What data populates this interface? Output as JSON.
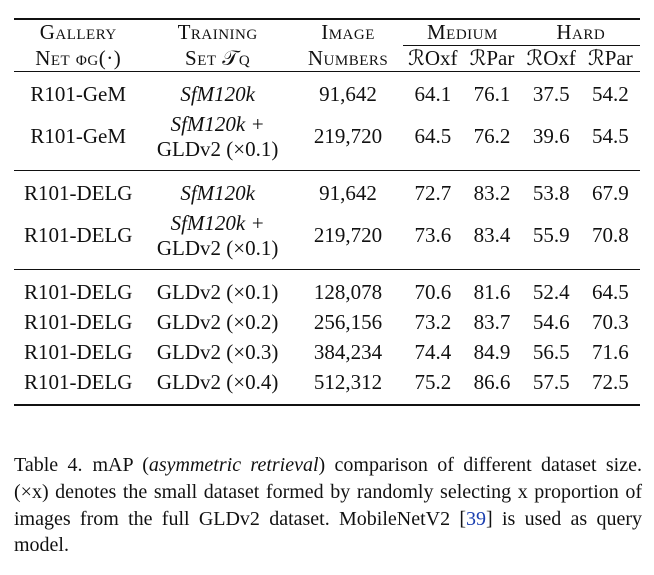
{
  "table": {
    "headers": {
      "gallery_line1": "Gallery",
      "gallery_line2": "Net ϕg(·)",
      "training_line1": "Training",
      "training_line2": "Set 𝒯q",
      "image_line1": "Image",
      "image_line2": "Numbers",
      "medium": "Medium",
      "hard": "Hard",
      "roxf": "ℛOxf",
      "rpar": "ℛPar"
    },
    "sections": [
      [
        {
          "net": "R101-GeM",
          "set": "SfM120k",
          "set2": "",
          "images": "91,642",
          "vals": [
            "64.1",
            "76.1",
            "37.5",
            "54.2"
          ],
          "bold": false
        },
        {
          "net": "R101-GeM",
          "set": "SfM120k +",
          "set2": "GLDv2 (×0.1)",
          "images": "219,720",
          "vals": [
            "64.5",
            "76.2",
            "39.6",
            "54.5"
          ],
          "bold": true
        }
      ],
      [
        {
          "net": "R101-DELG",
          "set": "SfM120k",
          "set2": "",
          "images": "91,642",
          "vals": [
            "72.7",
            "83.2",
            "53.8",
            "67.9"
          ],
          "bold": false
        },
        {
          "net": "R101-DELG",
          "set": "SfM120k +",
          "set2": "GLDv2 (×0.1)",
          "images": "219,720",
          "vals": [
            "73.6",
            "83.4",
            "55.9",
            "70.8"
          ],
          "bold": true
        }
      ],
      [
        {
          "net": "R101-DELG",
          "set": "GLDv2 (×0.1)",
          "images": "128,078",
          "vals": [
            "70.6",
            "81.6",
            "52.4",
            "64.5"
          ]
        },
        {
          "net": "R101-DELG",
          "set": "GLDv2 (×0.2)",
          "images": "256,156",
          "vals": [
            "73.2",
            "83.7",
            "54.6",
            "70.3"
          ]
        },
        {
          "net": "R101-DELG",
          "set": "GLDv2 (×0.3)",
          "images": "384,234",
          "vals": [
            "74.4",
            "84.9",
            "56.5",
            "71.6"
          ]
        },
        {
          "net": "R101-DELG",
          "set": "GLDv2 (×0.4)",
          "images": "512,312",
          "vals": [
            "75.2",
            "86.6",
            "57.5",
            "72.5"
          ],
          "bold": true
        }
      ]
    ]
  },
  "caption": {
    "label": "Table 4.",
    "p1": "mAP (",
    "p2": "asymmetric retrieval",
    "p3": ") comparison of different dataset size. (×x) denotes the small dataset formed by randomly selecting x proportion of images from the full GLDv2 dataset. MobileNetV2 [",
    "cite": "39",
    "p4": "] is used as query model."
  }
}
